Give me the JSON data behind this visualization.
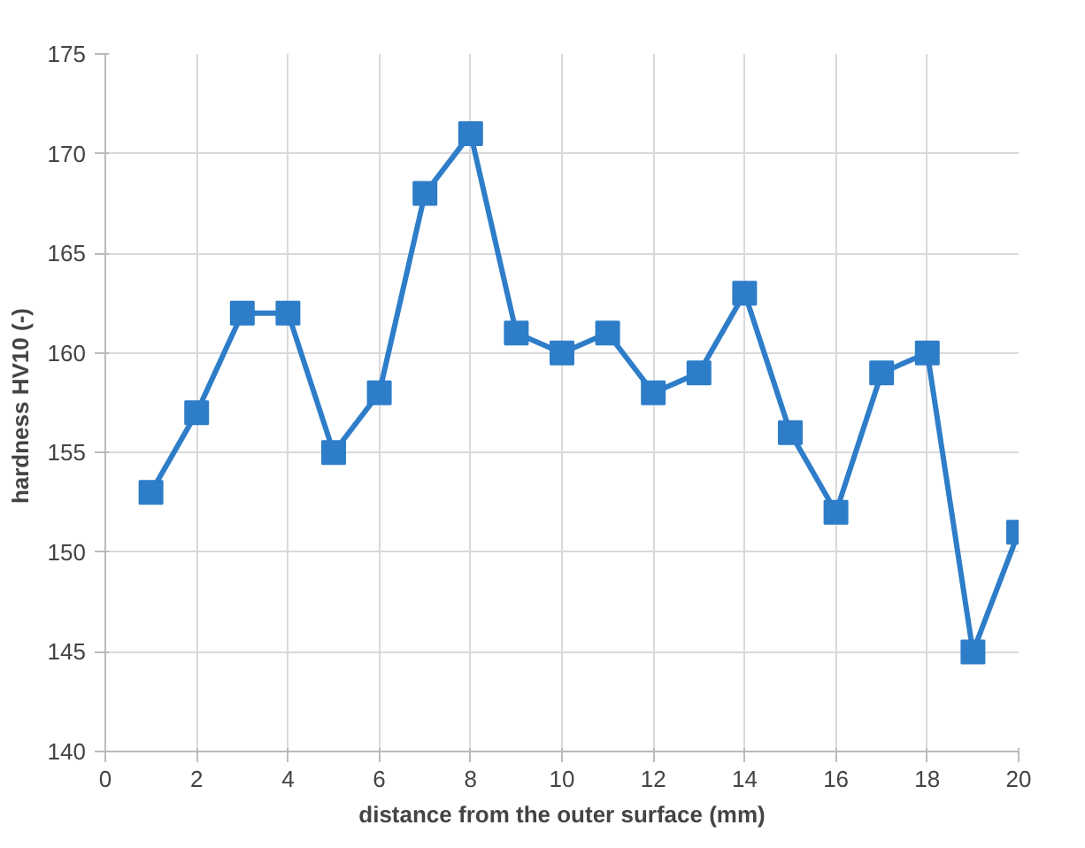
{
  "chart_data": {
    "type": "line",
    "xlabel": "distance from the outer surface (mm)",
    "ylabel": "hardness  HV10 (-)",
    "x": [
      1,
      2,
      3,
      4,
      5,
      6,
      7,
      8,
      9,
      10,
      11,
      12,
      13,
      14,
      15,
      16,
      17,
      18,
      19,
      20
    ],
    "series": [
      {
        "color": "#2e7dc9",
        "values": [
          153,
          157,
          162,
          162,
          155,
          158,
          168,
          171,
          161,
          160,
          161,
          158,
          159,
          163,
          156,
          152,
          159,
          160,
          145,
          151
        ]
      }
    ],
    "xlim": [
      0,
      20
    ],
    "xticks": [
      0,
      2,
      4,
      6,
      8,
      10,
      12,
      14,
      16,
      18,
      20
    ],
    "ylim": [
      140,
      175
    ],
    "yticks": [
      140,
      145,
      150,
      155,
      160,
      165,
      170,
      175
    ],
    "grid": true,
    "marker": "square",
    "line_style": "solid"
  }
}
